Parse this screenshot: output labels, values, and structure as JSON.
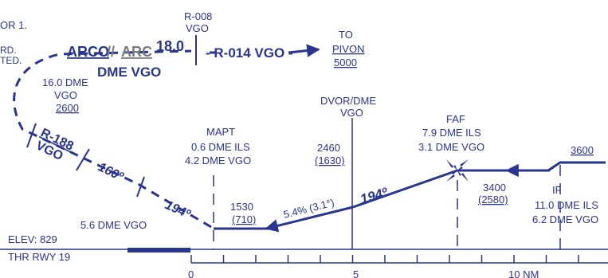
{
  "edge_text": {
    "top_line": "OR 1.",
    "mid_line1": "RD.",
    "mid_line2": "TED."
  },
  "missed_approach": {
    "arc_name": "ARCO",
    "arc_sep": "//",
    "arc_label": "ARC",
    "arc_dist": "18.0",
    "arc_nav": "DME VGO",
    "r008_radial": "R-008",
    "r008_nav": "VGO",
    "outbound_label": "- R-014 VGO -",
    "to_label": "TO",
    "to_fix": "PIVON",
    "to_alt": "5000",
    "dme16_dist": "16.0 DME",
    "dme16_nav": "VGO",
    "dme16_alt": "2600",
    "r188_radial": "R-188",
    "r188_nav": "VGO",
    "heading_160": "160º",
    "heading_194": "194º",
    "dme56": "5.6 DME VGO"
  },
  "profile": {
    "dvor_label": "DVOR/DME",
    "dvor_nav": "VGO",
    "mapt_label": "MAPT",
    "mapt_dist_ils": "0.6 DME ILS",
    "mapt_dist_vgo": "4.2 DME VGO",
    "alt_1530": "1530",
    "alt_710": "(710)",
    "alt_2460": "2460",
    "alt_1630": "(1630)",
    "glidepath": "5.4% (3.1°)",
    "final_course": "194º",
    "faf_label": "FAF",
    "faf_dist_ils": "7.9 DME ILS",
    "faf_dist_vgo": "3.1 DME VGO",
    "alt_3400": "3400",
    "alt_2580": "(2580)",
    "alt_3600": "3600",
    "if_label": "IF",
    "if_dist_ils": "11.0 DME ILS",
    "if_dist_vgo": "6.2 DME VGO",
    "elev": "ELEV: 829",
    "thr": "THR RWY 19"
  },
  "scale": {
    "ticks": [
      "0",
      "5",
      "10 NM"
    ],
    "unit": "NM"
  },
  "colors": {
    "primary": "#2a3590",
    "gray": "#777a80"
  }
}
